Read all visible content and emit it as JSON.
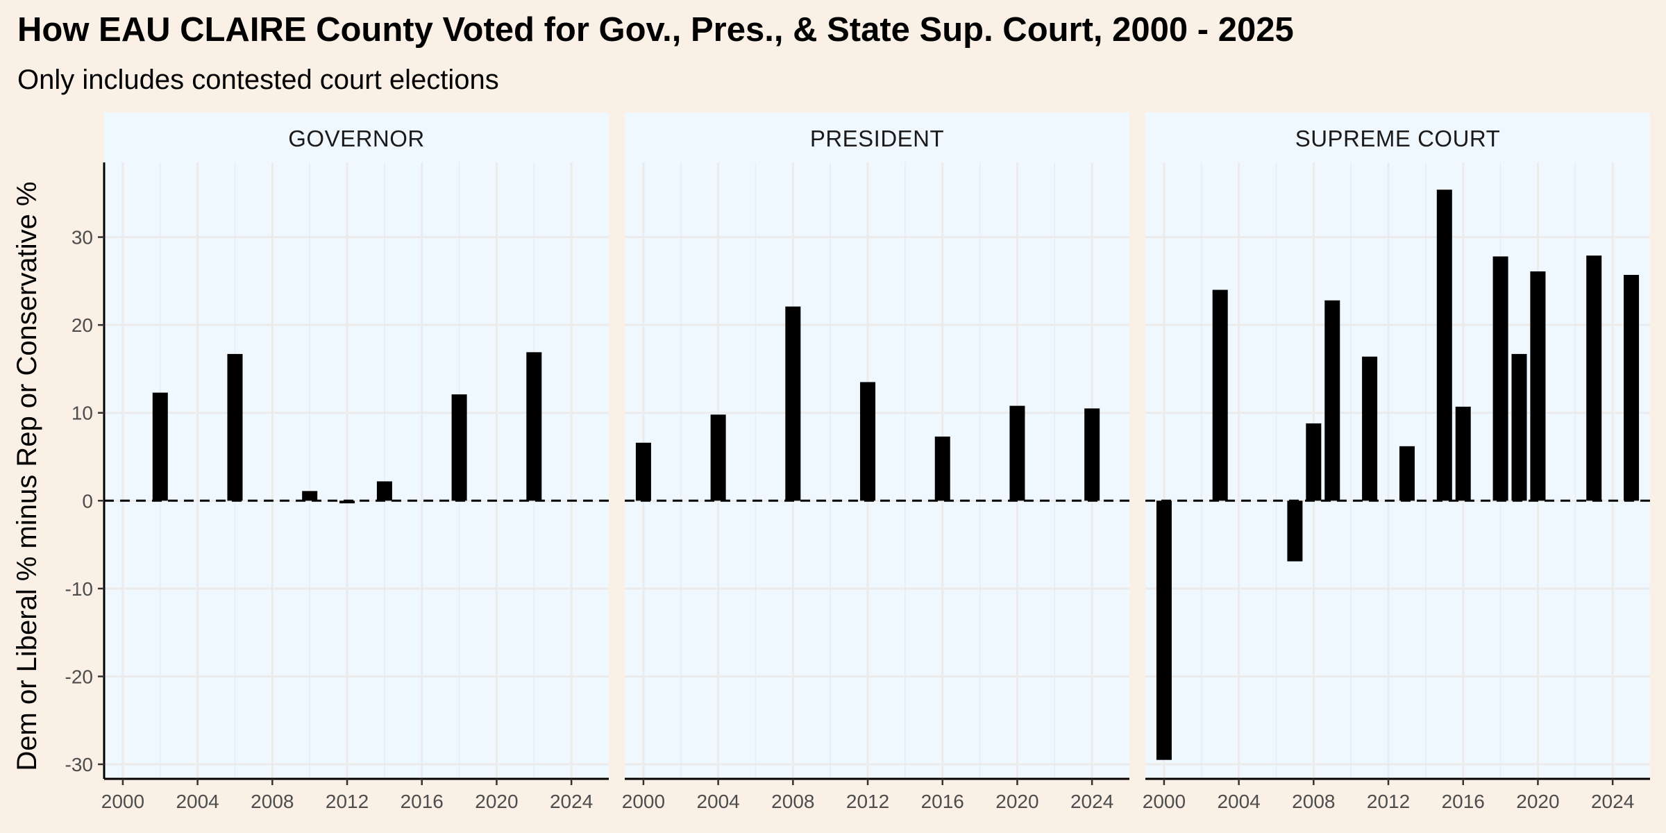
{
  "chart_data": {
    "type": "bar",
    "title": "How EAU CLAIRE County Voted for Gov., Pres., & State Sup. Court, 2000 - 2025",
    "subtitle": "Only includes contested court elections",
    "ylabel": "Dem or Liberal % minus Rep or Conservative %",
    "xlabel": "",
    "xlim": [
      1999,
      2026
    ],
    "ylim": [
      -31.5,
      38.5
    ],
    "x_ticks": [
      2000,
      2004,
      2008,
      2012,
      2016,
      2020,
      2024
    ],
    "x_tick_labels": [
      "2000",
      "2004",
      "2008",
      "2012",
      "2016",
      "2020",
      "2024"
    ],
    "y_ticks": [
      -30,
      -20,
      -10,
      0,
      10,
      20,
      30
    ],
    "y_tick_labels": [
      "-30",
      "-20",
      "-10",
      "0",
      "10",
      "20",
      "30"
    ],
    "reference_line": {
      "y": 0,
      "style": "dashed"
    },
    "grid": true,
    "colors": {
      "background": "#FAF0E6",
      "panel": "#F0F8FF",
      "bar": "#000000",
      "grid": "#EBEBEB"
    },
    "panels": [
      {
        "label": "GOVERNOR",
        "x": [
          2002,
          2006,
          2010,
          2012,
          2014,
          2018,
          2022
        ],
        "values": [
          12.3,
          16.7,
          1.1,
          -0.3,
          2.2,
          12.1,
          16.9
        ]
      },
      {
        "label": "PRESIDENT",
        "x": [
          2000,
          2004,
          2008,
          2012,
          2016,
          2020,
          2024
        ],
        "values": [
          6.6,
          9.8,
          22.1,
          13.5,
          7.3,
          10.8,
          10.5
        ]
      },
      {
        "label": "SUPREME COURT",
        "x": [
          2000,
          2003,
          2007,
          2008,
          2009,
          2011,
          2013,
          2015,
          2016,
          2018,
          2019,
          2020,
          2023,
          2025
        ],
        "values": [
          -29.5,
          24.0,
          -6.9,
          8.8,
          22.8,
          16.4,
          6.2,
          35.4,
          10.7,
          27.8,
          16.7,
          26.1,
          27.9,
          25.7
        ]
      }
    ]
  }
}
